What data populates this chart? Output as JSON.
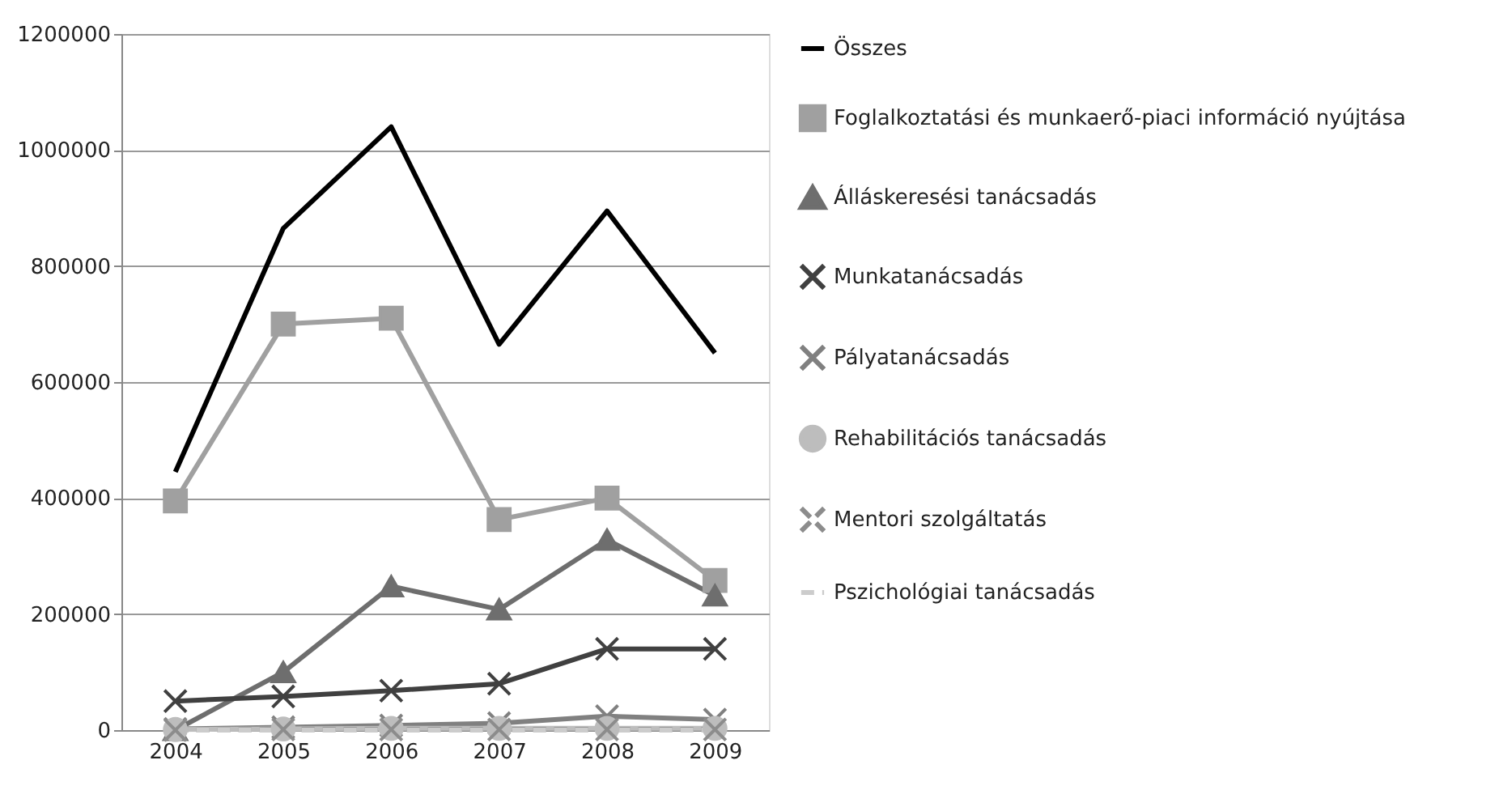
{
  "chart_data": {
    "type": "line",
    "categories": [
      "2004",
      "2005",
      "2006",
      "2007",
      "2008",
      "2009"
    ],
    "ylim": [
      0,
      1200000
    ],
    "yticks": [
      0,
      200000,
      400000,
      600000,
      800000,
      1000000,
      1200000
    ],
    "grid": "y",
    "legend": "right",
    "series": [
      {
        "name": "Összes",
        "color": "#000000",
        "marker": "none",
        "line_style": "solid",
        "values": [
          445000,
          865000,
          1040000,
          665000,
          895000,
          650000
        ]
      },
      {
        "name": "Foglalkoztatási és munkaerő-piaci információ nyújtása",
        "color": "#a0a0a0",
        "marker": "square",
        "line_style": "solid",
        "values": [
          395000,
          700000,
          710000,
          363000,
          400000,
          258000
        ]
      },
      {
        "name": "Álláskeresési tanácsadás",
        "color": "#6e6e6e",
        "marker": "triangle",
        "line_style": "solid",
        "values": [
          0,
          100000,
          248000,
          208000,
          328000,
          232000
        ]
      },
      {
        "name": "Munkatanácsadás",
        "color": "#404040",
        "marker": "cross",
        "line_style": "solid",
        "values": [
          50000,
          58000,
          68000,
          80000,
          140000,
          140000
        ]
      },
      {
        "name": "Pályatanácsadás",
        "color": "#808080",
        "marker": "cross",
        "line_style": "solid",
        "values": [
          2000,
          5000,
          8000,
          12000,
          24000,
          18000
        ]
      },
      {
        "name": "Rehabilitációs tanácsadás",
        "color": "#bdbdbd",
        "marker": "circle",
        "line_style": "solid",
        "values": [
          1000,
          2000,
          3000,
          3000,
          3000,
          3000
        ]
      },
      {
        "name": "Mentori szolgáltatás",
        "color": "#8c8c8c",
        "marker": "cross",
        "line_style": "dashed",
        "values": [
          0,
          1000,
          1000,
          1000,
          1000,
          1000
        ]
      },
      {
        "name": "Pszichológiai tanácsadás",
        "color": "#cccccc",
        "marker": "none",
        "line_style": "dashed",
        "values": [
          0,
          0,
          0,
          0,
          0,
          0
        ]
      }
    ]
  }
}
